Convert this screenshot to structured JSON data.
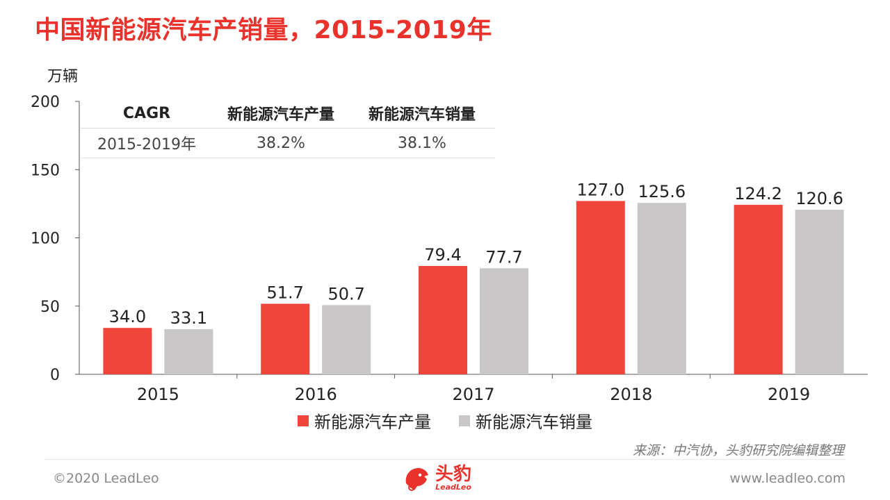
{
  "title": "中国新能源汽车产销量，2015-2019年",
  "unit_label": "万辆",
  "colors": {
    "production": "#f0453a",
    "sales": "#c8c6c6",
    "title": "#e8322b"
  },
  "cagr_table": {
    "headers": [
      "CAGR",
      "新能源汽车产量",
      "新能源汽车销量"
    ],
    "row": [
      "2015-2019年",
      "38.2%",
      "38.1%"
    ]
  },
  "chart_data": {
    "type": "bar",
    "categories": [
      "2015",
      "2016",
      "2017",
      "2018",
      "2019"
    ],
    "series": [
      {
        "name": "新能源汽车产量",
        "values": [
          34.0,
          51.7,
          79.4,
          127.0,
          124.2
        ]
      },
      {
        "name": "新能源汽车销量",
        "values": [
          33.1,
          50.7,
          77.7,
          125.6,
          120.6
        ]
      }
    ],
    "title": "中国新能源汽车产销量，2015-2019年",
    "ylabel": "万辆",
    "ylim": [
      0,
      200
    ],
    "yticks": [
      0,
      50,
      100,
      150,
      200
    ],
    "grid": false,
    "legend": "bottom"
  },
  "source": "来源：中汽协，头豹研究院编辑整理",
  "footer": {
    "copyright": "©2020 LeadLeo",
    "website": "www.leadleo.com"
  },
  "logo": {
    "name": "头豹",
    "sub": "LeadLeo"
  }
}
